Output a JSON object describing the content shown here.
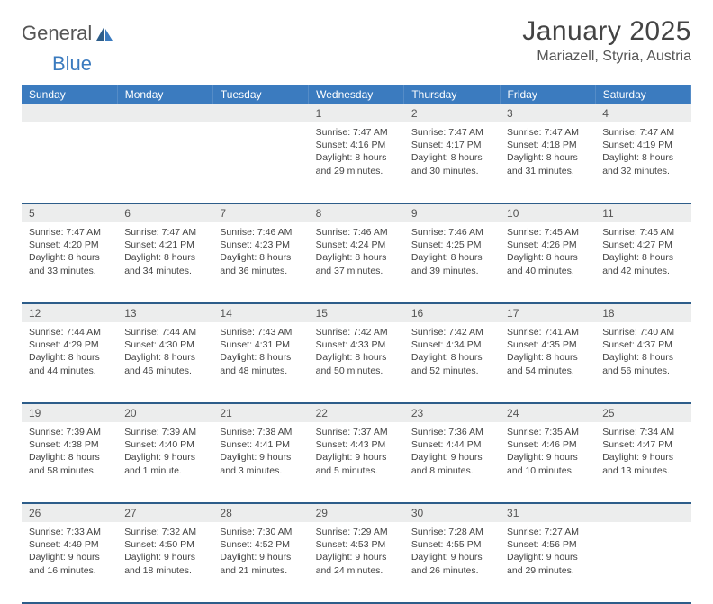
{
  "brand": {
    "name_left": "General",
    "name_right": "Blue"
  },
  "header": {
    "month_title": "January 2025",
    "location": "Mariazell, Styria, Austria"
  },
  "colors": {
    "header_bg": "#3b7bbf",
    "daynum_bg": "#eceded",
    "week_divider": "#2d5d8a",
    "text": "#444444",
    "background": "#ffffff"
  },
  "day_headers": [
    "Sunday",
    "Monday",
    "Tuesday",
    "Wednesday",
    "Thursday",
    "Friday",
    "Saturday"
  ],
  "weeks": [
    [
      null,
      null,
      null,
      {
        "n": "1",
        "sunrise": "7:47 AM",
        "sunset": "4:16 PM",
        "dl": "8 hours and 29 minutes."
      },
      {
        "n": "2",
        "sunrise": "7:47 AM",
        "sunset": "4:17 PM",
        "dl": "8 hours and 30 minutes."
      },
      {
        "n": "3",
        "sunrise": "7:47 AM",
        "sunset": "4:18 PM",
        "dl": "8 hours and 31 minutes."
      },
      {
        "n": "4",
        "sunrise": "7:47 AM",
        "sunset": "4:19 PM",
        "dl": "8 hours and 32 minutes."
      }
    ],
    [
      {
        "n": "5",
        "sunrise": "7:47 AM",
        "sunset": "4:20 PM",
        "dl": "8 hours and 33 minutes."
      },
      {
        "n": "6",
        "sunrise": "7:47 AM",
        "sunset": "4:21 PM",
        "dl": "8 hours and 34 minutes."
      },
      {
        "n": "7",
        "sunrise": "7:46 AM",
        "sunset": "4:23 PM",
        "dl": "8 hours and 36 minutes."
      },
      {
        "n": "8",
        "sunrise": "7:46 AM",
        "sunset": "4:24 PM",
        "dl": "8 hours and 37 minutes."
      },
      {
        "n": "9",
        "sunrise": "7:46 AM",
        "sunset": "4:25 PM",
        "dl": "8 hours and 39 minutes."
      },
      {
        "n": "10",
        "sunrise": "7:45 AM",
        "sunset": "4:26 PM",
        "dl": "8 hours and 40 minutes."
      },
      {
        "n": "11",
        "sunrise": "7:45 AM",
        "sunset": "4:27 PM",
        "dl": "8 hours and 42 minutes."
      }
    ],
    [
      {
        "n": "12",
        "sunrise": "7:44 AM",
        "sunset": "4:29 PM",
        "dl": "8 hours and 44 minutes."
      },
      {
        "n": "13",
        "sunrise": "7:44 AM",
        "sunset": "4:30 PM",
        "dl": "8 hours and 46 minutes."
      },
      {
        "n": "14",
        "sunrise": "7:43 AM",
        "sunset": "4:31 PM",
        "dl": "8 hours and 48 minutes."
      },
      {
        "n": "15",
        "sunrise": "7:42 AM",
        "sunset": "4:33 PM",
        "dl": "8 hours and 50 minutes."
      },
      {
        "n": "16",
        "sunrise": "7:42 AM",
        "sunset": "4:34 PM",
        "dl": "8 hours and 52 minutes."
      },
      {
        "n": "17",
        "sunrise": "7:41 AM",
        "sunset": "4:35 PM",
        "dl": "8 hours and 54 minutes."
      },
      {
        "n": "18",
        "sunrise": "7:40 AM",
        "sunset": "4:37 PM",
        "dl": "8 hours and 56 minutes."
      }
    ],
    [
      {
        "n": "19",
        "sunrise": "7:39 AM",
        "sunset": "4:38 PM",
        "dl": "8 hours and 58 minutes."
      },
      {
        "n": "20",
        "sunrise": "7:39 AM",
        "sunset": "4:40 PM",
        "dl": "9 hours and 1 minute."
      },
      {
        "n": "21",
        "sunrise": "7:38 AM",
        "sunset": "4:41 PM",
        "dl": "9 hours and 3 minutes."
      },
      {
        "n": "22",
        "sunrise": "7:37 AM",
        "sunset": "4:43 PM",
        "dl": "9 hours and 5 minutes."
      },
      {
        "n": "23",
        "sunrise": "7:36 AM",
        "sunset": "4:44 PM",
        "dl": "9 hours and 8 minutes."
      },
      {
        "n": "24",
        "sunrise": "7:35 AM",
        "sunset": "4:46 PM",
        "dl": "9 hours and 10 minutes."
      },
      {
        "n": "25",
        "sunrise": "7:34 AM",
        "sunset": "4:47 PM",
        "dl": "9 hours and 13 minutes."
      }
    ],
    [
      {
        "n": "26",
        "sunrise": "7:33 AM",
        "sunset": "4:49 PM",
        "dl": "9 hours and 16 minutes."
      },
      {
        "n": "27",
        "sunrise": "7:32 AM",
        "sunset": "4:50 PM",
        "dl": "9 hours and 18 minutes."
      },
      {
        "n": "28",
        "sunrise": "7:30 AM",
        "sunset": "4:52 PM",
        "dl": "9 hours and 21 minutes."
      },
      {
        "n": "29",
        "sunrise": "7:29 AM",
        "sunset": "4:53 PM",
        "dl": "9 hours and 24 minutes."
      },
      {
        "n": "30",
        "sunrise": "7:28 AM",
        "sunset": "4:55 PM",
        "dl": "9 hours and 26 minutes."
      },
      {
        "n": "31",
        "sunrise": "7:27 AM",
        "sunset": "4:56 PM",
        "dl": "9 hours and 29 minutes."
      },
      null
    ]
  ],
  "labels": {
    "sunrise_prefix": "Sunrise: ",
    "sunset_prefix": "Sunset: ",
    "daylight_prefix": "Daylight: "
  }
}
